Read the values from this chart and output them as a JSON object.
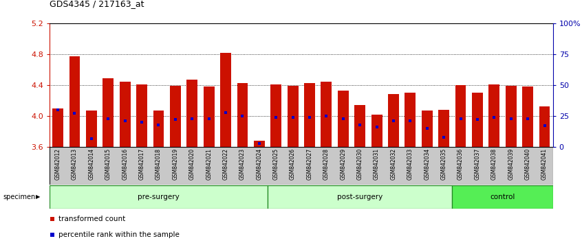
{
  "title": "GDS4345 / 217163_at",
  "samples": [
    "GSM842012",
    "GSM842013",
    "GSM842014",
    "GSM842015",
    "GSM842016",
    "GSM842017",
    "GSM842018",
    "GSM842019",
    "GSM842020",
    "GSM842021",
    "GSM842022",
    "GSM842023",
    "GSM842024",
    "GSM842025",
    "GSM842026",
    "GSM842027",
    "GSM842028",
    "GSM842029",
    "GSM842030",
    "GSM842031",
    "GSM842032",
    "GSM842033",
    "GSM842034",
    "GSM842035",
    "GSM842036",
    "GSM842037",
    "GSM842038",
    "GSM842039",
    "GSM842040",
    "GSM842041"
  ],
  "transformed_counts": [
    4.1,
    4.77,
    4.07,
    4.49,
    4.44,
    4.41,
    4.07,
    4.39,
    4.47,
    4.38,
    4.82,
    4.43,
    3.68,
    4.41,
    4.39,
    4.43,
    4.44,
    4.33,
    4.14,
    4.02,
    4.28,
    4.3,
    4.07,
    4.08,
    4.4,
    4.3,
    4.41,
    4.39,
    4.38,
    4.12
  ],
  "percentile_ranks_pct": [
    30,
    27,
    7,
    23,
    21,
    20,
    18,
    22,
    23,
    23,
    28,
    25,
    3,
    24,
    24,
    24,
    25,
    23,
    18,
    16,
    21,
    21,
    15,
    8,
    23,
    22,
    24,
    23,
    23,
    17
  ],
  "groups": [
    {
      "label": "pre-surgery",
      "start": 0,
      "end": 13,
      "color": "#BBFFBB"
    },
    {
      "label": "post-surgery",
      "start": 13,
      "end": 24,
      "color": "#BBFFBB"
    },
    {
      "label": "control",
      "start": 24,
      "end": 30,
      "color": "#44DD44"
    }
  ],
  "ylim": [
    3.6,
    5.2
  ],
  "yticks_left": [
    3.6,
    4.0,
    4.4,
    4.8,
    5.2
  ],
  "right_pct_ticks": [
    0,
    25,
    50,
    75,
    100
  ],
  "right_pct_labels": [
    "0",
    "25",
    "50",
    "75",
    "100%"
  ],
  "bar_color": "#CC1100",
  "dot_color": "#0000CC",
  "baseline": 3.6,
  "right_axis_color": "#0000AA",
  "left_axis_color": "#CC1100",
  "bg_xtick": "#C8C8C8",
  "group_border_color": "#228822",
  "dotted_line_color": "#000000",
  "dot_size": 3.5
}
